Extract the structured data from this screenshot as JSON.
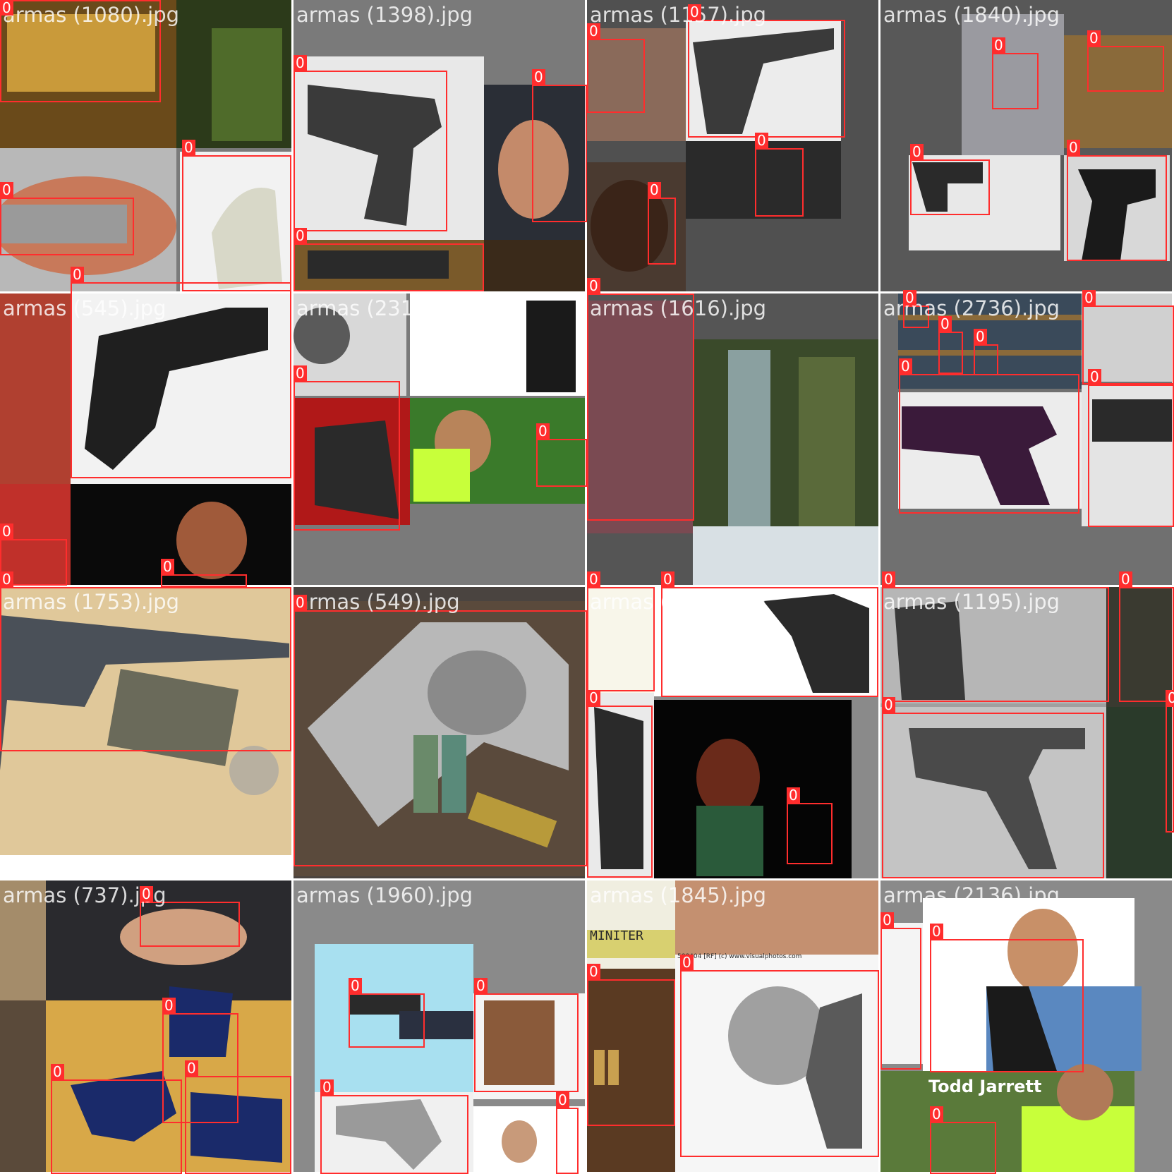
{
  "tiles": [
    {
      "title": "armas (1080).jpg"
    },
    {
      "title": "armas (1398).jpg"
    },
    {
      "title": "armas (1157).jpg"
    },
    {
      "title": "armas (1840).jpg"
    },
    {
      "title": "armas (545).jpg"
    },
    {
      "title": "armas (2317).jpg"
    },
    {
      "title": "armas (1616).jpg"
    },
    {
      "title": "armas (2736).jpg"
    },
    {
      "title": "armas (1753).jpg"
    },
    {
      "title": "armas (549).jpg"
    },
    {
      "title": "armas (2199).jpg"
    },
    {
      "title": "armas (1195).jpg"
    },
    {
      "title": "armas (737).jpg"
    },
    {
      "title": "armas (1960).jpg"
    },
    {
      "title": "armas (1845).jpg"
    },
    {
      "title": "armas (2136).jpg"
    }
  ],
  "class_label": "0",
  "box_color": "#ff2d2d",
  "embedded_text": {
    "todd_jarrett": "Todd Jarrett",
    "miniter": "MINITER",
    "visualphotos": "588404 [RF] (c) www.visualphotos.com"
  }
}
